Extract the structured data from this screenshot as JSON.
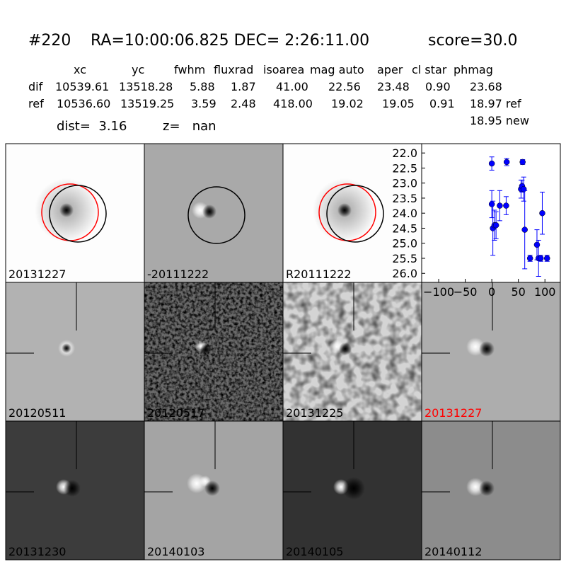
{
  "header": {
    "id": "#220",
    "coords": "RA=10:00:06.825 DEC= 2:26:11.00",
    "score": "score=30.0"
  },
  "table": {
    "columns": [
      "xc",
      "yc",
      "fwhm",
      "fluxrad",
      "isoarea",
      "mag auto",
      "aper",
      "cl star",
      "phmag"
    ],
    "rows": [
      [
        "dif",
        "10539.61",
        "13518.28",
        "5.88",
        "1.87",
        "41.00",
        "22.56",
        "23.48",
        "0.90",
        "23.68"
      ],
      [
        "ref",
        "10536.60",
        "13519.25",
        "3.59",
        "2.48",
        "418.00",
        "19.02",
        "19.05",
        "0.91",
        "18.97 ref"
      ]
    ],
    "extra": "18.95 new"
  },
  "dist": "dist=  3.16",
  "z": "z=   nan",
  "panels": [
    [
      "20131227",
      "-20111222",
      "R20111222"
    ],
    [
      "20120511",
      "20120517",
      "20131225",
      "20131227"
    ],
    [
      "20131230",
      "20140103",
      "20140105",
      "20140112"
    ]
  ],
  "chart_data": {
    "type": "scatter",
    "color": "#0000ff",
    "x": [
      0,
      28,
      58,
      0,
      2,
      5,
      8,
      15,
      27,
      55,
      57,
      60,
      62,
      72,
      85,
      88,
      92,
      95,
      104
    ],
    "values": [
      22.35,
      22.3,
      22.3,
      23.7,
      24.5,
      24.4,
      24.4,
      23.75,
      23.75,
      23.2,
      23.1,
      23.2,
      24.55,
      25.5,
      25.05,
      25.5,
      25.5,
      24.0,
      25.5
    ],
    "errors": [
      0.22,
      0.12,
      0.08,
      0.45,
      0.9,
      0.5,
      0.45,
      0.5,
      0.3,
      0.3,
      0.2,
      0.4,
      1.3,
      0.1,
      0.5,
      0.6,
      0.1,
      0.7,
      0.1
    ],
    "xlim": [
      -132,
      129
    ],
    "ylim": [
      26.3,
      21.69
    ],
    "xticks": [
      {
        "value": -100,
        "label": "−100"
      },
      {
        "value": -50,
        "label": "−50"
      },
      0,
      50,
      100
    ],
    "yticks": [
      {
        "value": 22,
        "label": "22.0"
      },
      22.5,
      {
        "value": 23,
        "label": "23.0"
      },
      23.5,
      {
        "value": 24,
        "label": "24.0"
      },
      24.5,
      {
        "value": 25,
        "label": "25.0"
      },
      25.5,
      {
        "value": 26,
        "label": "26.0"
      }
    ]
  }
}
